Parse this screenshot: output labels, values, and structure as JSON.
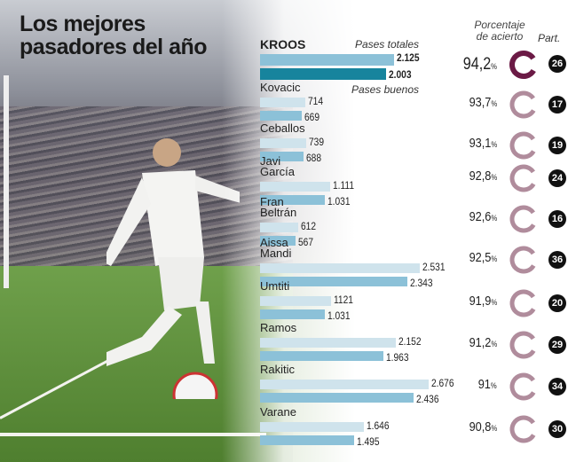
{
  "title": "Los mejores pasadores del año",
  "headers": {
    "total": "Pases totales",
    "good": "Pases buenos",
    "pct": "Porcentaje de acierto",
    "matches": "Part."
  },
  "colors": {
    "total_bar": "#cfe3ec",
    "good_bar": "#8cc1d8",
    "kroos_total": "#8cc1d8",
    "kroos_good": "#17849d",
    "ring_highlight": "#6b1a45",
    "ring": "#b08c9c"
  },
  "chart_data": {
    "type": "bar",
    "orientation": "horizontal",
    "title": "Los mejores pasadores del año",
    "categories": [
      "KROOS",
      "Kovacic",
      "Ceballos",
      "Javi García",
      "Fran Beltrán",
      "Aissa Mandi",
      "Umtiti",
      "Ramos",
      "Rakitic",
      "Varane"
    ],
    "series": [
      {
        "name": "Pases totales",
        "values": [
          2125,
          714,
          739,
          1111,
          612,
          2531,
          1121,
          2152,
          2676,
          1646
        ],
        "labels": [
          "2.125",
          "714",
          "739",
          "1.111",
          "612",
          "2.531",
          "1121",
          "2.152",
          "2.676",
          "1.646"
        ]
      },
      {
        "name": "Pases buenos",
        "values": [
          2003,
          669,
          688,
          1031,
          567,
          2343,
          1031,
          1963,
          2436,
          1495
        ],
        "labels": [
          "2.003",
          "669",
          "688",
          "1.031",
          "567",
          "2.343",
          "1.031",
          "1.963",
          "2.436",
          "1.495"
        ]
      }
    ],
    "accuracy_pct": [
      "94,2",
      "93,7",
      "93,1",
      "92,8",
      "92,6",
      "92,5",
      "91,9",
      "91,2",
      "91",
      "90,8"
    ],
    "matches": [
      "26",
      "17",
      "19",
      "24",
      "16",
      "36",
      "20",
      "29",
      "34",
      "30"
    ],
    "pct_unit": "%"
  }
}
